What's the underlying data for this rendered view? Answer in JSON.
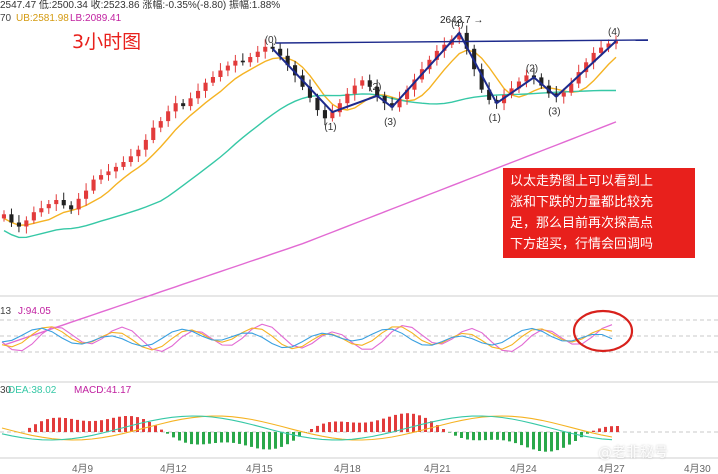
{
  "header": {
    "price_info": "2547.47 低:2500.34 收:2523.86 涨幅:-0.35%(-8.80) 振幅:1.88%",
    "boll_info_prefix": "70",
    "boll_ub": "UB:2581.98",
    "boll_lb": "LB:2089.41",
    "kdj_prefix": "13",
    "kdj_j": "J:94.05",
    "macd_prefix": "30",
    "macd_dea": "DEA:38.02",
    "macd_value": "MACD:41.17"
  },
  "title": "3小时图",
  "annotation": [
    "以太走势图上可以看到上",
    "涨和下跌的力量都比较充",
    "足，那么目前再次探高点",
    "下方超买，行情会回调吗"
  ],
  "watermark": "@老非秘号",
  "peak_label": "2643.7",
  "wave_labels": [
    "(0)",
    "(1)",
    "(2)",
    "(3)",
    "(4)",
    "(1)",
    "(2)",
    "(3)",
    "(4)"
  ],
  "date_labels": [
    "4月9",
    "4月12",
    "4月15",
    "4月18",
    "4月21",
    "4月24",
    "4月27",
    "4月30"
  ],
  "colors": {
    "up": "#e23b3b",
    "down": "#222222",
    "ma_short": "#f5b323",
    "ma_mid": "#36c8a6",
    "ma_long": "#e26ad3",
    "wave": "#1d2a8c",
    "annotation_bg": "#e8201c"
  },
  "chart_data": [
    {
      "type": "line",
      "panel": "candlestick-3h",
      "title": "3小时图",
      "values_note": "price path",
      "series": [
        {
          "name": "",
          "values": [
            2200,
            2180,
            2170,
            2185,
            2205,
            2215,
            2225,
            2235,
            2222,
            2212,
            2238,
            2258,
            2285,
            2296,
            2305,
            2316,
            2328,
            2342,
            2358,
            2382,
            2412,
            2428,
            2452,
            2472,
            2465,
            2484,
            2502,
            2522,
            2536,
            2552,
            2564,
            2576,
            2572,
            2585,
            2598,
            2610,
            2605,
            2588,
            2565,
            2540,
            2512,
            2485,
            2455,
            2435,
            2450,
            2472,
            2495,
            2515,
            2528,
            2512,
            2490,
            2472,
            2462,
            2482,
            2505,
            2530,
            2555,
            2578,
            2600,
            2615,
            2628,
            2644,
            2605,
            2555,
            2505,
            2480,
            2472,
            2492,
            2508,
            2525,
            2540,
            2535,
            2515,
            2496,
            2488,
            2498,
            2520,
            2548,
            2572,
            2595,
            2608,
            2618,
            2624
          ]
        }
      ],
      "annotations": [
        "2643.7",
        "(0)",
        "(1)",
        "(2)",
        "(3)",
        "(4)"
      ]
    },
    {
      "type": "line",
      "panel": "kdj",
      "series": [
        {
          "name": "J",
          "values": [
            94.05
          ]
        }
      ]
    },
    {
      "type": "bar",
      "panel": "macd",
      "series": [
        {
          "name": "DEA",
          "values": [
            38.02
          ]
        },
        {
          "name": "MACD",
          "values": [
            41.17
          ]
        }
      ]
    }
  ]
}
